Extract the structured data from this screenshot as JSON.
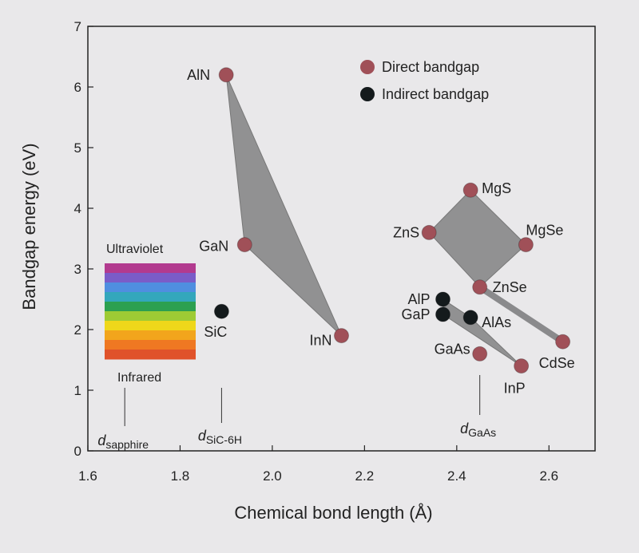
{
  "chart_data": {
    "type": "scatter",
    "xlabel": "Chemical bond length (Å)",
    "ylabel": "Bandgap energy (eV)",
    "xlim": [
      1.6,
      2.7
    ],
    "ylim": [
      0,
      7
    ],
    "xticks": [
      "1.6",
      "1.8",
      "2.0",
      "2.2",
      "2.4",
      "2.6"
    ],
    "yticks": [
      "0",
      "1",
      "2",
      "3",
      "4",
      "5",
      "6",
      "7"
    ],
    "grid": false,
    "legend": {
      "placement": "top-right",
      "entries": [
        {
          "label": "Direct bandgap",
          "color": "#a05058"
        },
        {
          "label": "Indirect bandgap",
          "color": "#141a1c"
        }
      ]
    },
    "points": [
      {
        "label": "AlN",
        "x": 1.9,
        "y": 6.2,
        "type": "direct"
      },
      {
        "label": "GaN",
        "x": 1.94,
        "y": 3.4,
        "type": "direct"
      },
      {
        "label": "InN",
        "x": 2.15,
        "y": 1.9,
        "type": "direct"
      },
      {
        "label": "SiC",
        "x": 1.89,
        "y": 2.3,
        "type": "indirect"
      },
      {
        "label": "MgS",
        "x": 2.43,
        "y": 4.3,
        "type": "direct"
      },
      {
        "label": "ZnS",
        "x": 2.34,
        "y": 3.6,
        "type": "direct"
      },
      {
        "label": "MgSe",
        "x": 2.55,
        "y": 3.4,
        "type": "direct"
      },
      {
        "label": "ZnSe",
        "x": 2.45,
        "y": 2.7,
        "type": "direct"
      },
      {
        "label": "AlP",
        "x": 2.37,
        "y": 2.5,
        "type": "indirect"
      },
      {
        "label": "GaP",
        "x": 2.37,
        "y": 2.25,
        "type": "indirect"
      },
      {
        "label": "AlAs",
        "x": 2.43,
        "y": 2.2,
        "type": "indirect"
      },
      {
        "label": "GaAs",
        "x": 2.45,
        "y": 1.6,
        "type": "direct"
      },
      {
        "label": "InP",
        "x": 2.54,
        "y": 1.4,
        "type": "direct"
      },
      {
        "label": "CdSe",
        "x": 2.63,
        "y": 1.8,
        "type": "direct"
      }
    ],
    "shaded_regions": [
      {
        "vertices": [
          "AlN",
          "GaN",
          "InN"
        ]
      },
      {
        "vertices": [
          "MgS",
          "MgSe",
          "ZnSe",
          "ZnS"
        ]
      },
      {
        "vertices": [
          "AlP",
          "AlAs",
          "InP",
          "GaP"
        ]
      }
    ],
    "connectors": [
      {
        "from": "ZnSe",
        "to": "CdSe"
      }
    ],
    "annotations": {
      "spectrum_top": "Ultraviolet",
      "spectrum_bottom": "Infrared",
      "spectrum_colors": [
        "#b23a8f",
        "#7a5cc8",
        "#4f8ee0",
        "#33a7bc",
        "#2ca050",
        "#9ecb34",
        "#efd71a",
        "#f2a51c",
        "#ef7822",
        "#e0522a"
      ],
      "references": [
        {
          "d": "d",
          "sub": "sapphire",
          "x": 1.68
        },
        {
          "d": "d",
          "sub": "SiC-6H",
          "x": 1.89
        },
        {
          "d": "d",
          "sub": "GaAs",
          "x": 2.45
        }
      ]
    }
  }
}
